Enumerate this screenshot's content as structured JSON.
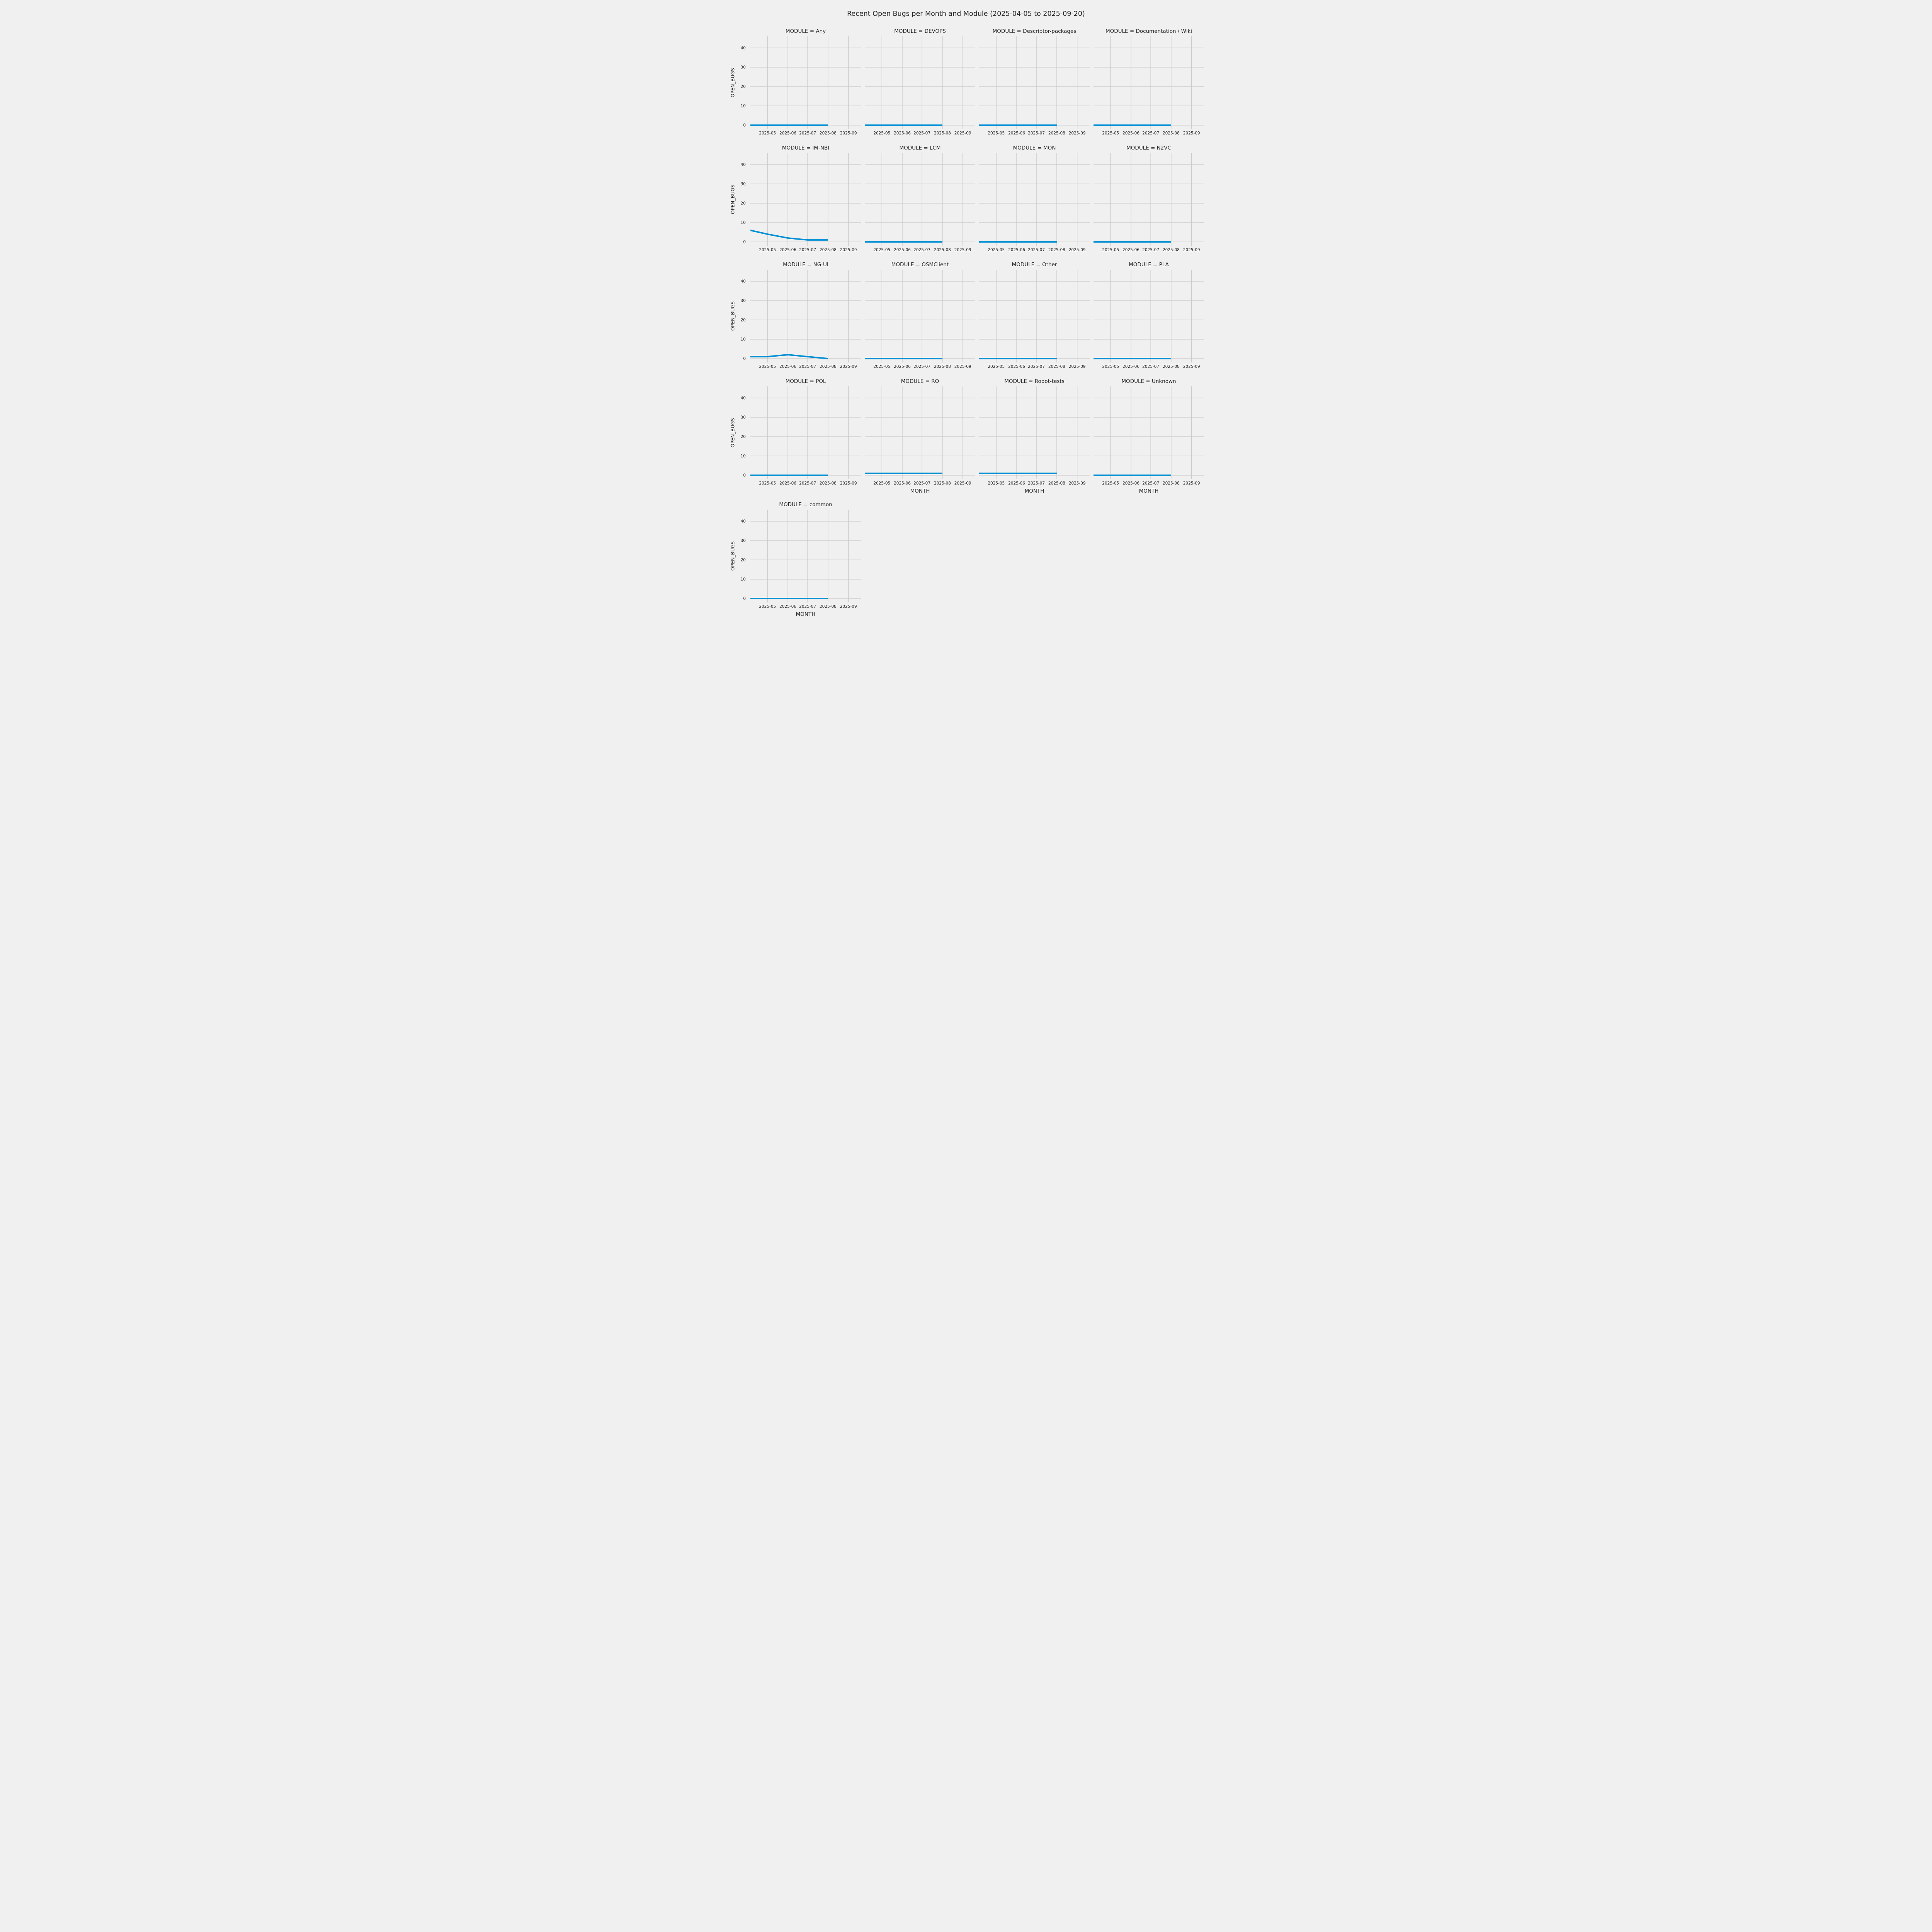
{
  "title": "Recent Open Bugs per Month and Module (2025-04-05 to 2025-09-20)",
  "chart_data": {
    "type": "line",
    "title": "Recent Open Bugs per Month and Module (2025-04-05 to 2025-09-20)",
    "facet_variable": "MODULE",
    "xlabel": "MONTH",
    "ylabel": "OPEN_BUGS",
    "x": [
      "2025-04",
      "2025-05",
      "2025-06",
      "2025-07",
      "2025-08"
    ],
    "xticks": [
      "2025-05",
      "2025-06",
      "2025-07",
      "2025-08",
      "2025-09"
    ],
    "yticks": [
      0,
      10,
      20,
      30,
      40
    ],
    "ylim": [
      -2,
      46
    ],
    "date_range": {
      "start": "2025-04-05",
      "end": "2025-09-20"
    },
    "grid": true,
    "legend": "none",
    "columns": 4,
    "line_color": "#008fd5",
    "background_color": "#f0f0f0",
    "gridline_color": "#cbcbcb",
    "facets": [
      {
        "label": "MODULE = Any",
        "module": "Any",
        "values": [
          0,
          0,
          0,
          0,
          0
        ]
      },
      {
        "label": "MODULE = DEVOPS",
        "module": "DEVOPS",
        "values": [
          0,
          0,
          0,
          0,
          0
        ]
      },
      {
        "label": "MODULE = Descriptor-packages",
        "module": "Descriptor-packages",
        "values": [
          0,
          0,
          0,
          0,
          0
        ]
      },
      {
        "label": "MODULE = Documentation / Wiki",
        "module": "Documentation / Wiki",
        "values": [
          0,
          0,
          0,
          0,
          0
        ]
      },
      {
        "label": "MODULE = IM-NBI",
        "module": "IM-NBI",
        "values": [
          6,
          4,
          2,
          1,
          1
        ]
      },
      {
        "label": "MODULE = LCM",
        "module": "LCM",
        "values": [
          0,
          0,
          0,
          0,
          0
        ]
      },
      {
        "label": "MODULE = MON",
        "module": "MON",
        "values": [
          0,
          0,
          0,
          0,
          0
        ]
      },
      {
        "label": "MODULE = N2VC",
        "module": "N2VC",
        "values": [
          0,
          0,
          0,
          0,
          0
        ]
      },
      {
        "label": "MODULE = NG-UI",
        "module": "NG-UI",
        "values": [
          1,
          1,
          2,
          1,
          0
        ]
      },
      {
        "label": "MODULE = OSMClient",
        "module": "OSMClient",
        "values": [
          0,
          0,
          0,
          0,
          0
        ]
      },
      {
        "label": "MODULE = Other",
        "module": "Other",
        "values": [
          0,
          0,
          0,
          0,
          0
        ]
      },
      {
        "label": "MODULE = PLA",
        "module": "PLA",
        "values": [
          0,
          0,
          0,
          0,
          0
        ]
      },
      {
        "label": "MODULE = POL",
        "module": "POL",
        "values": [
          0,
          0,
          0,
          0,
          0
        ]
      },
      {
        "label": "MODULE = RO",
        "module": "RO",
        "values": [
          1,
          1,
          1,
          1,
          1
        ]
      },
      {
        "label": "MODULE = Robot-tests",
        "module": "Robot-tests",
        "values": [
          1,
          1,
          1,
          1,
          1
        ]
      },
      {
        "label": "MODULE = Unknown",
        "module": "Unknown",
        "values": [
          0,
          0,
          0,
          0,
          0
        ]
      },
      {
        "label": "MODULE = common",
        "module": "common",
        "values": [
          0,
          0,
          0,
          0,
          0
        ]
      }
    ]
  }
}
